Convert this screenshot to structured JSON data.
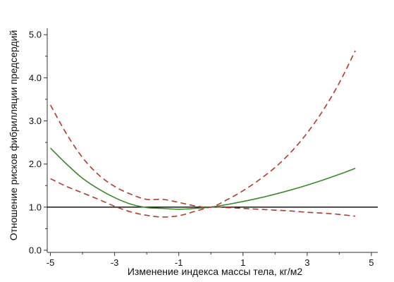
{
  "chart_data": {
    "type": "line",
    "title": "",
    "xlabel": "Изменение индекса массы тела, кг/м2",
    "ylabel": "Отношение рисков фибрилляции предсердий",
    "xlim": [
      -5.1,
      5.2
    ],
    "ylim": [
      -0.05,
      5.15
    ],
    "x_ticks": [
      -5,
      -4,
      -3,
      -2,
      -1,
      0,
      1,
      2,
      3,
      4,
      5
    ],
    "x_tick_labels": [
      "-5",
      "",
      "-3",
      "",
      "-1",
      "",
      "1",
      "",
      "3",
      "",
      "5"
    ],
    "y_ticks": [
      0,
      0.5,
      1,
      1.5,
      2,
      2.5,
      3,
      3.5,
      4,
      4.5,
      5
    ],
    "y_tick_labels": [
      "0.0",
      "",
      "1.0",
      "",
      "2.0",
      "",
      "3.0",
      "",
      "4.0",
      "",
      "5.0"
    ],
    "reference_line": {
      "y": 1.0,
      "color": "#000000"
    },
    "grid": false,
    "legend": "none",
    "colors": {
      "estimate": "#3a8a2a",
      "ci": "#b03a2e",
      "axis": "#333333"
    },
    "series": [
      {
        "role": "estimate",
        "style": "solid",
        "x": [
          -5.0,
          -4.5,
          -4.0,
          -3.5,
          -3.0,
          -2.5,
          -2.0,
          -1.5,
          -1.0,
          -0.5,
          0.0,
          0.5,
          1.0,
          1.5,
          2.0,
          2.5,
          3.0,
          3.5,
          4.0,
          4.5
        ],
        "y": [
          2.37,
          2.0,
          1.67,
          1.42,
          1.22,
          1.07,
          0.99,
          0.97,
          0.95,
          0.97,
          1.0,
          1.06,
          1.13,
          1.21,
          1.3,
          1.4,
          1.51,
          1.63,
          1.76,
          1.9
        ]
      },
      {
        "role": "upper-ci",
        "style": "dashed",
        "x": [
          -5.0,
          -4.5,
          -4.0,
          -3.5,
          -3.0,
          -2.5,
          -2.0,
          -1.5,
          -1.0,
          -0.5,
          0.0,
          0.5,
          1.0,
          1.5,
          2.0,
          2.5,
          3.0,
          3.5,
          4.0,
          4.5
        ],
        "y": [
          3.37,
          2.7,
          2.15,
          1.75,
          1.48,
          1.3,
          1.18,
          1.18,
          1.11,
          1.03,
          1.0,
          1.17,
          1.38,
          1.63,
          1.92,
          2.28,
          2.72,
          3.25,
          3.88,
          4.63
        ]
      },
      {
        "role": "lower-ci",
        "style": "dashed",
        "x": [
          -5.0,
          -4.5,
          -4.0,
          -3.5,
          -3.0,
          -2.5,
          -2.0,
          -1.5,
          -1.0,
          -0.5,
          0.0,
          0.5,
          1.0,
          1.5,
          2.0,
          2.5,
          3.0,
          3.5,
          4.0,
          4.5
        ],
        "y": [
          1.66,
          1.48,
          1.33,
          1.18,
          1.02,
          0.89,
          0.81,
          0.77,
          0.8,
          0.9,
          1.0,
          0.99,
          0.97,
          0.95,
          0.93,
          0.91,
          0.88,
          0.86,
          0.83,
          0.79
        ]
      }
    ]
  }
}
